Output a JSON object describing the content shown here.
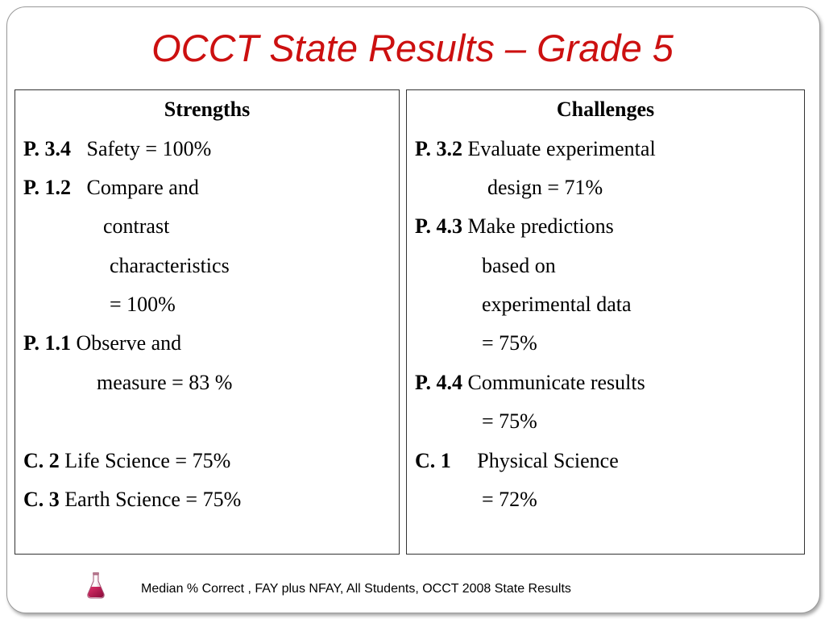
{
  "title": "OCCT State Results – Grade 5",
  "strengths": {
    "heading": "Strengths",
    "items": [
      {
        "code": "P. 3.4",
        "text": "Safety = 100%"
      },
      {
        "code": "P. 1.2",
        "text": "Compare and",
        "cont": [
          "contrast",
          "characteristics",
          "=  100%"
        ]
      },
      {
        "code": "P. 1.1",
        "text": "Observe and",
        "cont": [
          "measure = 83 %"
        ]
      },
      {
        "code": "C. 2",
        "text": "Life Science = 75%"
      },
      {
        "code": "C. 3",
        "text": "Earth Science = 75%"
      }
    ]
  },
  "challenges": {
    "heading": "Challenges",
    "items": [
      {
        "code": "P. 3.2",
        "text": "Evaluate experimental",
        "cont": [
          "design = 71%"
        ]
      },
      {
        "code": "P. 4.3",
        "text": "Make predictions",
        "cont": [
          "based on",
          "experimental data",
          "= 75%"
        ]
      },
      {
        "code": "P. 4.4",
        "text": "Communicate results",
        "cont": [
          "= 75%"
        ]
      },
      {
        "code": "C. 1",
        "text": "Physical Science",
        "cont": [
          "=  72%"
        ]
      }
    ]
  },
  "footer": {
    "text": "Median % Correct , FAY plus NFAY, All  Students, OCCT 2008 State Results",
    "icon": "flask-icon"
  }
}
